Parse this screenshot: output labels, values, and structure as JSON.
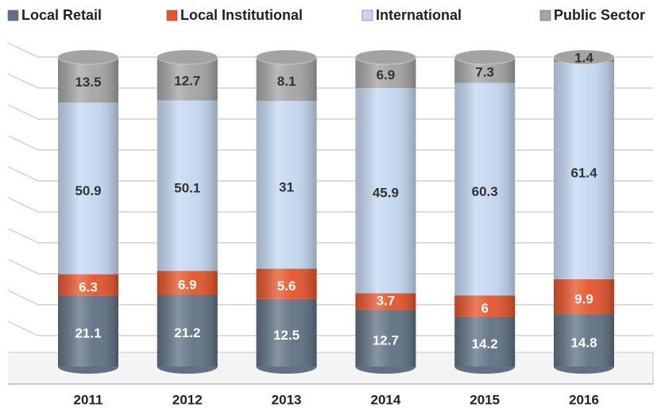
{
  "chart_data": {
    "type": "stacked_cylinder",
    "stacking": "percent",
    "categories": [
      "2011",
      "2012",
      "2013",
      "2014",
      "2015",
      "2016"
    ],
    "series": [
      {
        "name": "Local Retail",
        "color": "#5f7184",
        "values": [
          21.1,
          21.2,
          12.5,
          12.7,
          14.2,
          14.8
        ]
      },
      {
        "name": "Local Institutional",
        "color": "#e5532a",
        "values": [
          6.3,
          6.9,
          5.6,
          3.7,
          6.0,
          9.9
        ]
      },
      {
        "name": "International",
        "color": "#c3d7f0",
        "values": [
          50.9,
          50.1,
          31.0,
          45.9,
          60.3,
          61.4
        ]
      },
      {
        "name": "Public Sector",
        "color": "#a3a3a3",
        "values": [
          13.5,
          12.7,
          8.1,
          6.9,
          7.3,
          1.4
        ]
      }
    ],
    "ylim": [
      0,
      100
    ],
    "yticks": [
      0,
      10,
      20,
      30,
      40,
      50,
      60,
      70,
      80,
      90,
      100
    ],
    "grid": true,
    "legend": "top"
  }
}
